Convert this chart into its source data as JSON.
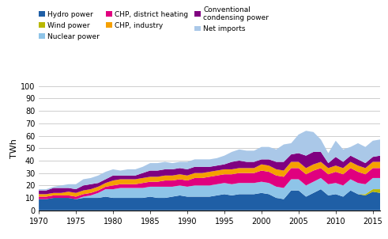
{
  "years": [
    1970,
    1971,
    1972,
    1973,
    1974,
    1975,
    1976,
    1977,
    1978,
    1979,
    1980,
    1981,
    1982,
    1983,
    1984,
    1985,
    1986,
    1987,
    1988,
    1989,
    1990,
    1991,
    1992,
    1993,
    1994,
    1995,
    1996,
    1997,
    1998,
    1999,
    2000,
    2001,
    2002,
    2003,
    2004,
    2005,
    2006,
    2007,
    2008,
    2009,
    2010,
    2011,
    2012,
    2013,
    2014,
    2015,
    2016
  ],
  "hydro": [
    9,
    9,
    10,
    10,
    10,
    9,
    10,
    10,
    10,
    11,
    10,
    10,
    10,
    10,
    10,
    11,
    10,
    10,
    11,
    12,
    11,
    11,
    11,
    11,
    12,
    13,
    12,
    13,
    13,
    13,
    14,
    13,
    10,
    9,
    16,
    16,
    11,
    14,
    17,
    12,
    13,
    11,
    16,
    13,
    12,
    15,
    14
  ],
  "wind": [
    0,
    0,
    0,
    0,
    0,
    0,
    0,
    0,
    0,
    0,
    0,
    0,
    0,
    0,
    0,
    0,
    0,
    0,
    0,
    0,
    0,
    0,
    0,
    0,
    0,
    0,
    0,
    0,
    0,
    0,
    0,
    0,
    0,
    0,
    0,
    0,
    0,
    0,
    0,
    0,
    0,
    0,
    0,
    0,
    1,
    2,
    3
  ],
  "nuclear": [
    0,
    0,
    0,
    0,
    0,
    0,
    1,
    2,
    4,
    6,
    7,
    8,
    8,
    8,
    8,
    8,
    9,
    9,
    8,
    8,
    8,
    9,
    9,
    9,
    9,
    9,
    9,
    9,
    9,
    9,
    9,
    9,
    9,
    9,
    9,
    9,
    9,
    9,
    9,
    9,
    9,
    9,
    9,
    9,
    8,
    9,
    9
  ],
  "chp_district": [
    2,
    2,
    2,
    2,
    2,
    2,
    2,
    2,
    2,
    2,
    3,
    3,
    3,
    3,
    4,
    4,
    4,
    5,
    5,
    5,
    5,
    6,
    6,
    7,
    7,
    7,
    8,
    8,
    8,
    8,
    9,
    9,
    9,
    9,
    9,
    9,
    9,
    9,
    8,
    8,
    9,
    9,
    9,
    9,
    8,
    8,
    8
  ],
  "chp_industry": [
    2,
    2,
    2,
    2,
    3,
    3,
    3,
    3,
    3,
    3,
    4,
    4,
    4,
    4,
    4,
    4,
    4,
    4,
    4,
    4,
    4,
    4,
    4,
    4,
    4,
    4,
    4,
    4,
    4,
    4,
    5,
    5,
    5,
    5,
    5,
    5,
    5,
    5,
    5,
    5,
    5,
    5,
    5,
    5,
    5,
    5,
    5
  ],
  "conventional": [
    3,
    3,
    4,
    4,
    3,
    3,
    4,
    4,
    3,
    3,
    4,
    3,
    3,
    3,
    4,
    5,
    5,
    5,
    5,
    5,
    5,
    5,
    5,
    4,
    4,
    4,
    6,
    6,
    5,
    5,
    4,
    5,
    6,
    7,
    6,
    7,
    10,
    10,
    8,
    4,
    7,
    5,
    5,
    5,
    4,
    4,
    5
  ],
  "net_imports": [
    1,
    1,
    1,
    2,
    3,
    4,
    5,
    5,
    6,
    6,
    5,
    4,
    5,
    5,
    5,
    6,
    6,
    6,
    5,
    5,
    6,
    6,
    6,
    6,
    6,
    7,
    8,
    9,
    9,
    9,
    10,
    10,
    10,
    14,
    9,
    15,
    20,
    16,
    10,
    8,
    13,
    10,
    7,
    13,
    13,
    13,
    13
  ],
  "colors": {
    "hydro": "#1f5fa6",
    "wind": "#b8b800",
    "nuclear": "#8ec4e8",
    "chp_district": "#e0007f",
    "chp_industry": "#f5a000",
    "conventional": "#800080",
    "net_imports": "#aac8e8"
  },
  "ylabel": "TWh",
  "ylim": [
    0,
    100
  ],
  "xlim": [
    1970,
    2016
  ],
  "xticks": [
    1970,
    1975,
    1980,
    1985,
    1990,
    1995,
    2000,
    2005,
    2010,
    2015
  ],
  "yticks": [
    0,
    10,
    20,
    30,
    40,
    50,
    60,
    70,
    80,
    90,
    100
  ]
}
